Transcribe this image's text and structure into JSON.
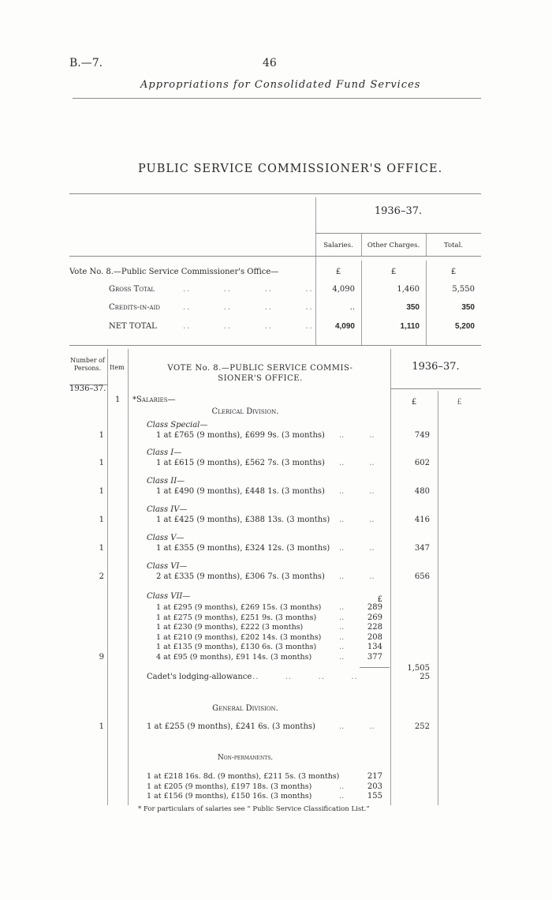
{
  "header": {
    "ref": "B.—7.",
    "page_number": "46",
    "running_title": "Appropriations for Consolidated Fund Services"
  },
  "title": "PUBLIC SERVICE COMMISSIONER'S OFFICE.",
  "summary": {
    "year": "1936–37.",
    "columns": [
      "Salaries.",
      "Other Charges.",
      "Total."
    ],
    "vote_label": "Vote No. 8.—Public Service Commissioner's Office—",
    "currency": [
      "£",
      "£",
      "£"
    ],
    "rows": [
      {
        "label": "Gross Total",
        "values": [
          "4,090",
          "1,460",
          "5,550"
        ]
      },
      {
        "label": "Credits-in-aid",
        "values": [
          "..",
          "350",
          "350"
        ]
      },
      {
        "label": "NET TOTAL",
        "values": [
          "4,090",
          "1,110",
          "5,200"
        ]
      }
    ]
  },
  "detail": {
    "col_persons": "Number of Persons.",
    "col_item": "Item",
    "vote_title_1": "VOTE No. 8.—PUBLIC SERVICE COMMIS-",
    "vote_title_2": "SIONER'S OFFICE.",
    "year": "1936–37.",
    "persons_year": "1936–37.",
    "item_number": "1",
    "salaries_label": "*Salaries—",
    "currency": "£",
    "clerical_heading": "Clerical Division.",
    "classes": [
      {
        "name": "Class Special—",
        "persons": "1",
        "line": "1 at £765 (9 months), £699 9s. (3 months)",
        "amount": "749"
      },
      {
        "name": "Class I—",
        "persons": "1",
        "line": "1 at £615 (9 months), £562 7s. (3 months)",
        "amount": "602"
      },
      {
        "name": "Class II—",
        "persons": "1",
        "line": "1 at £490 (9 months), £448 1s. (3 months)",
        "amount": "480"
      },
      {
        "name": "Class IV—",
        "persons": "1",
        "line": "1 at £425 (9 months), £388 13s. (3 months)",
        "amount": "416"
      },
      {
        "name": "Class V—",
        "persons": "1",
        "line": "1 at £355 (9 months), £324 12s. (3 months)",
        "amount": "347"
      },
      {
        "name": "Class VI—",
        "persons": "2",
        "line": "2 at £335 (9 months), £306 7s. (3 months)",
        "amount": "656"
      }
    ],
    "class_vii": {
      "name": "Class VII—",
      "persons": "9",
      "currency": "£",
      "lines": [
        {
          "text": "1 at £295 (9 months), £269 15s. (3 months)",
          "amount": "289"
        },
        {
          "text": "1 at £275 (9 months), £251 9s. (3 months)",
          "amount": "269"
        },
        {
          "text": "1 at £230 (9 months), £222 (3 months)",
          "amount": "228"
        },
        {
          "text": "1 at £210 (9 months), £202 14s. (3 months)",
          "amount": "208"
        },
        {
          "text": "1 at £135 (9 months), £130 6s. (3 months)",
          "amount": "134"
        },
        {
          "text": "4 at £95 (9 months), £91 14s. (3 months)",
          "amount": "377"
        }
      ],
      "total": "1,505"
    },
    "cadet": {
      "text": "Cadet's lodging-allowance",
      "amount": "25"
    },
    "general_heading": "General Division.",
    "general": {
      "persons": "1",
      "text": "1 at £255 (9 months), £241 6s. (3 months)",
      "amount": "252"
    },
    "nonperm_heading": "Non-permanents.",
    "nonperm": [
      {
        "text": "1 at £218 16s. 8d. (9 months), £211 5s. (3 months)",
        "amount": "217"
      },
      {
        "text": "1 at £205 (9 months), £197 18s. (3 months)",
        "amount": "203"
      },
      {
        "text": "1 at £156 (9 months), £150 16s. (3 months)",
        "amount": "155"
      }
    ],
    "footnote": "* For particulars of salaries see “ Public Service Classification List.”"
  }
}
